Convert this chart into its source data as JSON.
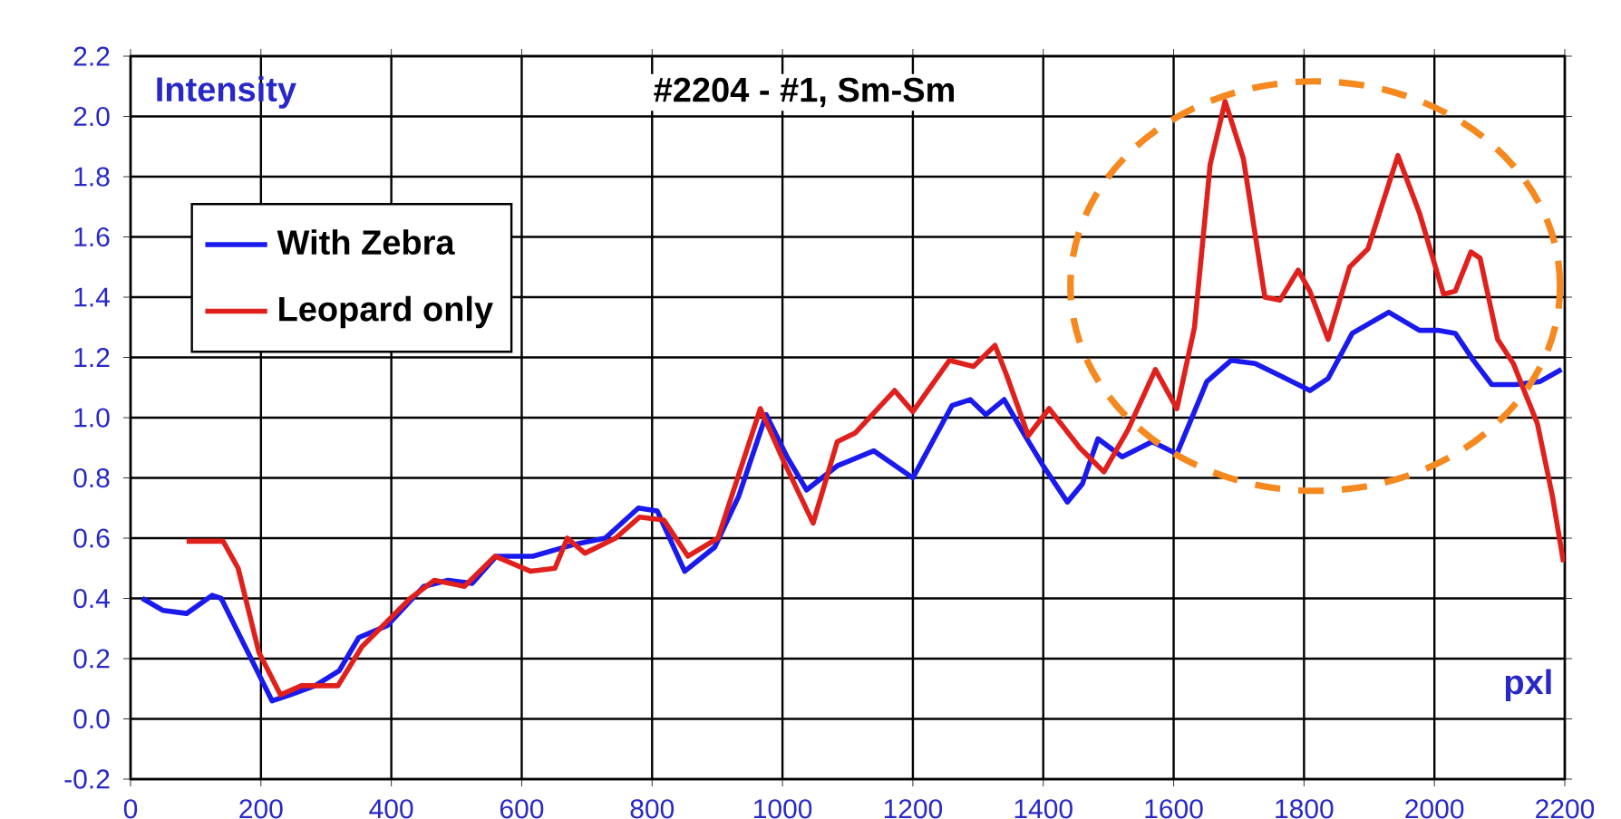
{
  "chart_data": {
    "type": "line",
    "title": "#2204 - #1,   Sm-Sm",
    "xlabel": "pxl",
    "ylabel": "Intensity",
    "xlim": [
      0,
      2200
    ],
    "xticks": [
      0,
      200,
      400,
      600,
      800,
      1000,
      1200,
      1400,
      1600,
      1800,
      2000,
      2200
    ],
    "ylim": [
      -0.2,
      2.2
    ],
    "yticks": [
      {
        "value": -0.2,
        "label": "-0.2"
      },
      {
        "value": 0,
        "label": "0.0"
      },
      {
        "value": 0.2,
        "label": "0.2"
      },
      {
        "value": 0.4,
        "label": "0.4"
      },
      {
        "value": 0.6,
        "label": "0.6"
      },
      {
        "value": 0.8,
        "label": "0.8"
      },
      {
        "value": 1,
        "label": "1.0"
      },
      {
        "value": 1.2,
        "label": "1.2"
      },
      {
        "value": 1.4,
        "label": "1.4"
      },
      {
        "value": 1.6,
        "label": "1.6"
      },
      {
        "value": 1.8,
        "label": "1.8"
      },
      {
        "value": 2,
        "label": "2.0"
      },
      {
        "value": 2.2,
        "label": "2.2"
      }
    ],
    "grid": true,
    "legend": "top left",
    "line_style": "solid",
    "series": [
      {
        "name": "With Zebra",
        "color": "#1a1aee",
        "x": [
          18,
          50,
          86,
          125,
          139,
          217,
          245,
          283,
          320,
          350,
          394,
          450,
          487,
          524,
          561,
          617,
          682,
          728,
          779,
          808,
          850,
          896,
          933,
          975,
          1007,
          1037,
          1084,
          1140,
          1200,
          1260,
          1288,
          1312,
          1340,
          1372,
          1400,
          1437,
          1460,
          1484,
          1521,
          1567,
          1605,
          1651,
          1688,
          1725,
          1763,
          1809,
          1837,
          1874,
          1930,
          1977,
          2005,
          2032,
          2060,
          2088,
          2125,
          2162,
          2195
        ],
        "values": [
          0.4,
          0.36,
          0.35,
          0.41,
          0.4,
          0.06,
          0.08,
          0.11,
          0.16,
          0.27,
          0.31,
          0.44,
          0.46,
          0.45,
          0.54,
          0.54,
          0.58,
          0.6,
          0.7,
          0.69,
          0.49,
          0.57,
          0.74,
          1.01,
          0.87,
          0.76,
          0.84,
          0.89,
          0.8,
          1.04,
          1.06,
          1.01,
          1.06,
          0.94,
          0.84,
          0.72,
          0.78,
          0.93,
          0.87,
          0.92,
          0.88,
          1.12,
          1.19,
          1.18,
          1.14,
          1.09,
          1.13,
          1.28,
          1.35,
          1.29,
          1.29,
          1.28,
          1.19,
          1.11,
          1.11,
          1.12,
          1.16
        ]
      },
      {
        "name": "Leopard only",
        "color": "#e0201c",
        "x": [
          86,
          142,
          165,
          197,
          230,
          262,
          318,
          355,
          429,
          466,
          512,
          559,
          614,
          651,
          670,
          697,
          744,
          781,
          818,
          855,
          901,
          966,
          1003,
          1047,
          1084,
          1112,
          1172,
          1200,
          1256,
          1293,
          1326,
          1344,
          1377,
          1409,
          1456,
          1493,
          1530,
          1572,
          1605,
          1632,
          1656,
          1679,
          1707,
          1740,
          1763,
          1791,
          1809,
          1837,
          1870,
          1898,
          1944,
          1977,
          2014,
          2032,
          2056,
          2070,
          2097,
          2121,
          2158,
          2181,
          2198
        ],
        "values": [
          0.59,
          0.59,
          0.5,
          0.22,
          0.08,
          0.11,
          0.11,
          0.24,
          0.4,
          0.46,
          0.44,
          0.54,
          0.49,
          0.5,
          0.6,
          0.55,
          0.6,
          0.67,
          0.66,
          0.54,
          0.6,
          1.03,
          0.85,
          0.65,
          0.92,
          0.95,
          1.09,
          1.02,
          1.19,
          1.17,
          1.24,
          1.14,
          0.94,
          1.03,
          0.9,
          0.82,
          0.96,
          1.16,
          1.03,
          1.3,
          1.84,
          2.05,
          1.86,
          1.4,
          1.39,
          1.49,
          1.42,
          1.26,
          1.5,
          1.56,
          1.87,
          1.68,
          1.41,
          1.42,
          1.55,
          1.53,
          1.26,
          1.18,
          0.98,
          0.74,
          0.52
        ]
      }
    ]
  }
}
